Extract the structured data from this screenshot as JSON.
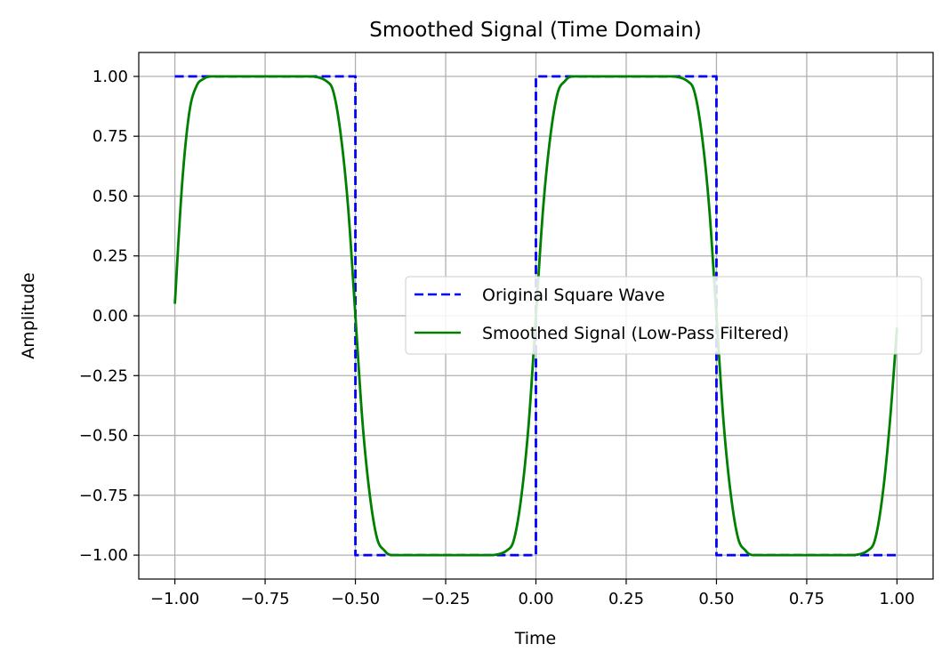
{
  "chart_data": {
    "type": "line",
    "title": "Smoothed Signal (Time Domain)",
    "xlabel": "Time",
    "ylabel": "Amplitude",
    "xlim": [
      -1.1,
      1.1
    ],
    "ylim": [
      -1.1,
      1.1
    ],
    "xticks": [
      -1.0,
      -0.75,
      -0.5,
      -0.25,
      0.0,
      0.25,
      0.5,
      0.75,
      1.0
    ],
    "xtick_labels": [
      "−1.00",
      "−0.75",
      "−0.50",
      "−0.25",
      "0.00",
      "0.25",
      "0.50",
      "0.75",
      "1.00"
    ],
    "yticks": [
      1.0,
      0.75,
      0.5,
      0.25,
      0.0,
      -0.25,
      -0.5,
      -0.75,
      -1.0
    ],
    "ytick_labels": [
      "1.00",
      "0.75",
      "0.50",
      "0.25",
      "0.00",
      "−0.25",
      "−0.50",
      "−0.75",
      "−1.00"
    ],
    "grid": true,
    "legend_position": "center-right",
    "series": [
      {
        "name": "Original Square Wave",
        "color": "#0000ff",
        "style": "dashed",
        "x": [
          -1.0,
          -0.5,
          -0.5,
          0.0,
          0.0,
          0.5,
          0.5,
          1.0
        ],
        "y": [
          1.0,
          1.0,
          -1.0,
          -1.0,
          1.0,
          1.0,
          -1.0,
          -1.0
        ]
      },
      {
        "name": "Smoothed Signal (Low-Pass Filtered)",
        "color": "#008000",
        "style": "solid",
        "x": [
          -1.0,
          -0.98,
          -0.96,
          -0.94,
          -0.92,
          -0.9,
          -0.85,
          -0.8,
          -0.7,
          -0.62,
          -0.58,
          -0.56,
          -0.54,
          -0.52,
          -0.5,
          -0.48,
          -0.46,
          -0.44,
          -0.42,
          -0.4,
          -0.35,
          -0.3,
          -0.2,
          -0.12,
          -0.08,
          -0.06,
          -0.04,
          -0.02,
          0.0,
          0.02,
          0.04,
          0.06,
          0.08,
          0.1,
          0.15,
          0.2,
          0.3,
          0.38,
          0.42,
          0.44,
          0.46,
          0.48,
          0.5,
          0.52,
          0.54,
          0.56,
          0.58,
          0.6,
          0.65,
          0.7,
          0.8,
          0.88,
          0.92,
          0.94,
          0.96,
          0.98,
          1.0
        ],
        "y": [
          0.05,
          0.55,
          0.85,
          0.96,
          0.99,
          1.0,
          1.0,
          1.0,
          1.0,
          1.0,
          0.98,
          0.93,
          0.75,
          0.45,
          0.0,
          -0.45,
          -0.75,
          -0.93,
          -0.98,
          -1.0,
          -1.0,
          -1.0,
          -1.0,
          -1.0,
          -0.98,
          -0.93,
          -0.75,
          -0.45,
          0.0,
          0.45,
          0.75,
          0.93,
          0.98,
          1.0,
          1.0,
          1.0,
          1.0,
          1.0,
          0.98,
          0.93,
          0.75,
          0.45,
          0.0,
          -0.45,
          -0.75,
          -0.93,
          -0.98,
          -1.0,
          -1.0,
          -1.0,
          -1.0,
          -1.0,
          -0.98,
          -0.93,
          -0.75,
          -0.45,
          -0.05
        ]
      }
    ]
  }
}
